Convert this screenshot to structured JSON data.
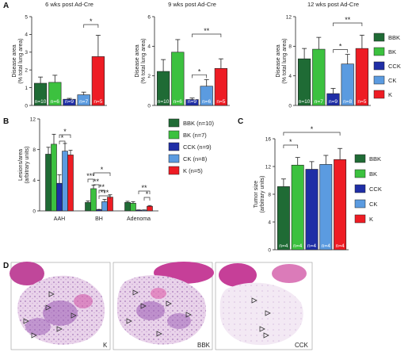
{
  "colors": {
    "BBK": "#1f6b35",
    "BK": "#3cc13f",
    "CCK": "#1f2ea6",
    "CK": "#5b9be0",
    "K": "#ee1c24"
  },
  "panel_letters": {
    "A": "A",
    "B": "B",
    "C": "C",
    "D": "D"
  },
  "chart_data": [
    {
      "panel": "A",
      "type": "bar",
      "title": "6 wks post Ad-Cre",
      "ylabel": "Disease area\n(% total lung area)",
      "ylim": [
        0,
        5
      ],
      "yticks": [
        0,
        1,
        2,
        3,
        4,
        5
      ],
      "categories": [
        "BBK",
        "BK",
        "CCK",
        "CK",
        "K"
      ],
      "values": [
        1.25,
        1.3,
        0.35,
        0.6,
        2.75
      ],
      "errors": [
        0.35,
        0.4,
        0.05,
        0.15,
        1.2
      ],
      "n_labels": [
        "n=10",
        "n=6",
        "n=9",
        "n=7",
        "n=5"
      ],
      "significance": [
        {
          "from": 3,
          "to": 4,
          "label": "*"
        }
      ]
    },
    {
      "panel": "A",
      "type": "bar",
      "title": "9 wks post Ad-Cre",
      "ylabel": "Disease area\n(% total lung area)",
      "ylim": [
        0,
        6
      ],
      "yticks": [
        0,
        2,
        4,
        6
      ],
      "categories": [
        "BBK",
        "BK",
        "CCK",
        "CK",
        "K"
      ],
      "values": [
        2.3,
        3.6,
        0.4,
        1.3,
        2.5
      ],
      "errors": [
        0.8,
        0.85,
        0.1,
        0.45,
        0.65
      ],
      "n_labels": [
        "n=10",
        "n=6",
        "n=9",
        "n=6",
        "n=5"
      ],
      "significance": [
        {
          "from": 2,
          "to": 3,
          "label": "*"
        },
        {
          "from": 2,
          "to": 4,
          "label": "**"
        }
      ]
    },
    {
      "panel": "A",
      "type": "bar",
      "title": "12 wks post Ad-Cre",
      "ylabel": "Disease area\n(% total lung area)",
      "ylim": [
        0,
        12
      ],
      "yticks": [
        0,
        4,
        8,
        12
      ],
      "categories": [
        "BBK",
        "BK",
        "CCK",
        "CK",
        "K"
      ],
      "values": [
        6.3,
        7.6,
        1.6,
        5.6,
        7.7
      ],
      "errors": [
        1.4,
        1.6,
        0.7,
        1.3,
        1.8
      ],
      "n_labels": [
        "n=10",
        "n=7",
        "n=9",
        "n=8",
        "n=5"
      ],
      "significance": [
        {
          "from": 2,
          "to": 3,
          "label": "*"
        },
        {
          "from": 2,
          "to": 4,
          "label": "**"
        }
      ]
    },
    {
      "panel": "B",
      "type": "bar",
      "title": "",
      "ylabel": "Lesions/area\n(arbitrary units)",
      "ylim": [
        0,
        12
      ],
      "yticks": [
        0,
        4,
        8,
        12
      ],
      "groups": [
        "AAH",
        "BH",
        "Adenoma"
      ],
      "series": [
        {
          "name": "BBK (n=10)",
          "values": [
            7.4,
            1.1,
            1.1
          ],
          "errors": [
            0.9,
            0.2,
            0.15
          ]
        },
        {
          "name": "BK (n=7)",
          "values": [
            8.7,
            2.9,
            1.0
          ],
          "errors": [
            1.3,
            0.45,
            0.2
          ]
        },
        {
          "name": "CCK (n=9)",
          "values": [
            3.6,
            0.15,
            0.1
          ],
          "errors": [
            1.1,
            0.05,
            0.03
          ]
        },
        {
          "name": "CK (n=8)",
          "values": [
            7.8,
            1.2,
            0.1
          ],
          "errors": [
            1.0,
            0.3,
            0.03
          ]
        },
        {
          "name": "K (n=5)",
          "values": [
            7.3,
            1.8,
            0.6
          ],
          "errors": [
            0.6,
            0.3,
            0.1
          ]
        }
      ],
      "significance": [
        {
          "group": 0,
          "from": 2,
          "to": 3,
          "label": "*"
        },
        {
          "group": 0,
          "from": 2,
          "to": 4,
          "label": "*"
        },
        {
          "group": 1,
          "from": 0,
          "to": 1,
          "label": "***"
        },
        {
          "group": 1,
          "from": 1,
          "to": 2,
          "label": "**"
        },
        {
          "group": 1,
          "from": 2,
          "to": 3,
          "label": "**"
        },
        {
          "group": 1,
          "from": 2,
          "to": 4,
          "label": "***"
        },
        {
          "group": 1,
          "from": 1,
          "to": 4,
          "label": "*"
        },
        {
          "group": 2,
          "from": 3,
          "to": 4,
          "label": "*"
        },
        {
          "group": 2,
          "from": 2,
          "to": 4,
          "label": "**"
        }
      ]
    },
    {
      "panel": "C",
      "type": "bar",
      "title": "",
      "ylabel": "Tumor size\n(arbitrary units)",
      "ylim": [
        0,
        16
      ],
      "yticks": [
        0,
        4,
        8,
        12,
        16
      ],
      "categories": [
        "BBK",
        "BK",
        "CCK",
        "CK",
        "K"
      ],
      "values": [
        9.1,
        12.2,
        11.6,
        12.3,
        13.0
      ],
      "errors": [
        1.1,
        1.1,
        1.1,
        1.3,
        1.6
      ],
      "n_labels": [
        "n=4",
        "n=4",
        "n=4",
        "n=4",
        "n=4"
      ],
      "significance": [
        {
          "from": 0,
          "to": 1,
          "label": "*"
        },
        {
          "from": 0,
          "to": 4,
          "label": "*"
        }
      ]
    }
  ],
  "legend_A": [
    "BBK",
    "BK",
    "CCK",
    "CK",
    "K"
  ],
  "legend_B": [
    "BBK (n=10)",
    "BK (n=7)",
    "CCK (n=9)",
    "CK (n=8)",
    "K (n=5)"
  ],
  "legend_C": [
    "BBK",
    "BK",
    "CCK",
    "CK",
    "K"
  ],
  "micrographs": [
    {
      "label": "K"
    },
    {
      "label": "BBK"
    },
    {
      "label": "CCK"
    }
  ]
}
